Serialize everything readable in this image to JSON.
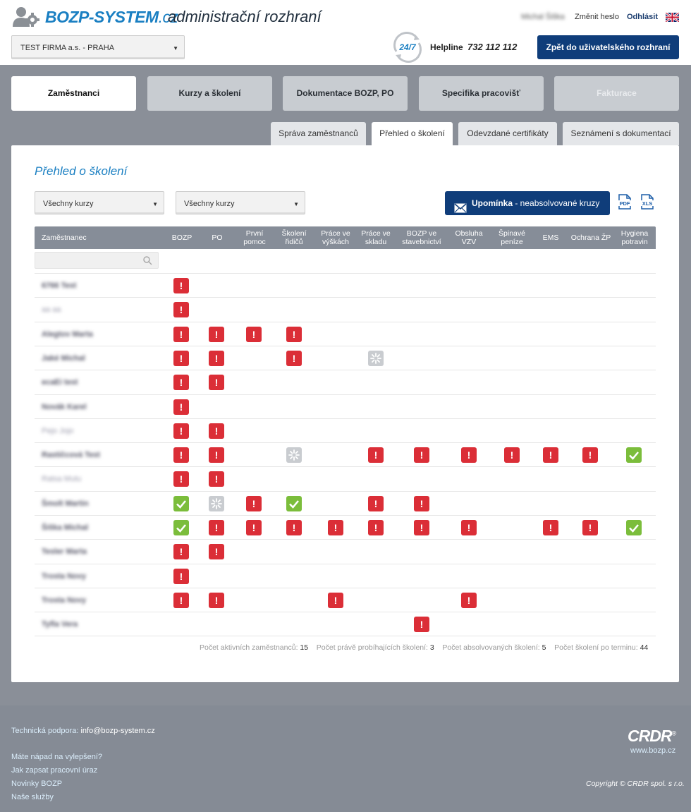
{
  "header": {
    "brand": "BOZP-SYSTEM",
    "brand_tld": ".cz",
    "subtitle": "administrační rozhraní",
    "user_name": "Michal Šiška",
    "change_password": "Změnit heslo",
    "logout": "Odhlásit",
    "language_icon": "uk-flag-icon",
    "company_select": "TEST FIRMA a.s. - PRAHA",
    "support_badge": "24/7",
    "helpline_label": "Helpline",
    "helpline_number": "732 112 112",
    "back_button": "Zpět do uživatelského rozhraní"
  },
  "main_tabs": [
    "Zaměstnanci",
    "Kurzy a školení",
    "Dokumentace BOZP, PO",
    "Specifika pracovišť",
    "Fakturace"
  ],
  "sub_tabs": [
    "Správa zaměstnanců",
    "Přehled o školení",
    "Odevzdané certifikáty",
    "Seznámení s dokumentací"
  ],
  "content": {
    "title": "Přehled o školení",
    "filter1": "Všechny kurzy",
    "filter2": "Všechny kurzy",
    "reminder_bold": "Upomínka",
    "reminder_rest": " - neabsolvované kruzy",
    "pdf_label": "PDF",
    "xls_label": "XLS",
    "search_placeholder": "",
    "columns": [
      "Zaměstnanec",
      "BOZP",
      "PO",
      "První pomoc",
      "Školení řidičů",
      "Práce ve výškách",
      "Práce ve skladu",
      "BOZP ve stavebnictví",
      "Obsluha VZV",
      "Špinavé peníze",
      "EMS",
      "Ochrana ŽP",
      "Hygiena potravin"
    ],
    "status_symbols": {
      "bad": "!",
      "ok": "check-icon",
      "pending": "spinner-icon"
    },
    "rows": [
      {
        "name": "6766 Test",
        "light": false,
        "status": [
          "bad",
          "",
          "",
          "",
          "",
          "",
          "",
          "",
          "",
          "",
          "",
          ""
        ]
      },
      {
        "name": "aa aa",
        "light": true,
        "status": [
          "bad",
          "",
          "",
          "",
          "",
          "",
          "",
          "",
          "",
          "",
          "",
          ""
        ]
      },
      {
        "name": "Alegtov Marta",
        "light": false,
        "status": [
          "bad",
          "bad",
          "bad",
          "bad",
          "",
          "",
          "",
          "",
          "",
          "",
          "",
          ""
        ]
      },
      {
        "name": "Jaké Michal",
        "light": false,
        "status": [
          "bad",
          "bad",
          "",
          "bad",
          "",
          "pend",
          "",
          "",
          "",
          "",
          "",
          ""
        ]
      },
      {
        "name": "ecaEi test",
        "light": false,
        "status": [
          "bad",
          "bad",
          "",
          "",
          "",
          "",
          "",
          "",
          "",
          "",
          "",
          ""
        ]
      },
      {
        "name": "Novák Karel",
        "light": false,
        "status": [
          "bad",
          "",
          "",
          "",
          "",
          "",
          "",
          "",
          "",
          "",
          "",
          ""
        ]
      },
      {
        "name": "Pejo Jojo",
        "light": true,
        "status": [
          "bad",
          "bad",
          "",
          "",
          "",
          "",
          "",
          "",
          "",
          "",
          "",
          ""
        ]
      },
      {
        "name": "Rastičcová Test",
        "light": false,
        "status": [
          "bad",
          "bad",
          "",
          "pend",
          "",
          "bad",
          "bad",
          "bad",
          "bad",
          "bad",
          "bad",
          "ok"
        ]
      },
      {
        "name": "Ratsa Mutu",
        "light": true,
        "status": [
          "bad",
          "bad",
          "",
          "",
          "",
          "",
          "",
          "",
          "",
          "",
          "",
          ""
        ]
      },
      {
        "name": "Šmolt Martin",
        "light": false,
        "status": [
          "ok",
          "pend",
          "bad",
          "ok",
          "",
          "bad",
          "bad",
          "",
          "",
          "",
          "",
          ""
        ]
      },
      {
        "name": "Šiška Michal",
        "light": false,
        "status": [
          "ok",
          "bad",
          "bad",
          "bad",
          "bad",
          "bad",
          "bad",
          "bad",
          "",
          "bad",
          "bad",
          "ok"
        ]
      },
      {
        "name": "Tesler Marta",
        "light": false,
        "status": [
          "bad",
          "bad",
          "",
          "",
          "",
          "",
          "",
          "",
          "",
          "",
          "",
          ""
        ]
      },
      {
        "name": "Trosta Novy",
        "light": false,
        "status": [
          "bad",
          "",
          "",
          "",
          "",
          "",
          "",
          "",
          "",
          "",
          "",
          ""
        ]
      },
      {
        "name": "Trosta Novy",
        "light": false,
        "status": [
          "bad",
          "bad",
          "",
          "",
          "bad",
          "",
          "",
          "bad",
          "",
          "",
          "",
          ""
        ]
      },
      {
        "name": "Tyfla Vera",
        "light": false,
        "status": [
          "",
          "",
          "",
          "",
          "",
          "",
          "bad",
          "",
          "",
          "",
          "",
          ""
        ]
      }
    ],
    "stats": [
      {
        "label": "Počet aktivních zaměstnanců:",
        "value": "15"
      },
      {
        "label": "Počet právě probíhajících školení:",
        "value": "3"
      },
      {
        "label": "Počet absolvovaných školení:",
        "value": "5"
      },
      {
        "label": "Počet školení po terminu:",
        "value": "44"
      }
    ]
  },
  "footer": {
    "support_label": "Technická podpora:",
    "support_email": "info@bozp-system.cz",
    "links": [
      "Máte nápad na vylepšení?",
      "Jak zapsat pracovní úraz",
      "Novinky BOZP",
      "Naše služby"
    ],
    "brand": "CRDR",
    "brand_reg": "®",
    "web": "www.bozp.cz",
    "copyright": "Copyright © CRDR spol. s r.o."
  }
}
